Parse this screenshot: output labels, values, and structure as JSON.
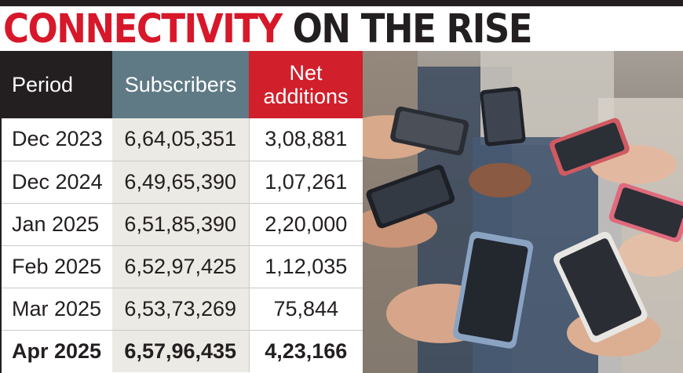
{
  "headline": {
    "part1": "CONNECTIVITY",
    "part2": "ON THE RISE"
  },
  "table": {
    "headers": {
      "period": "Period",
      "subscribers": "Subscribers",
      "net_additions_line1": "Net",
      "net_additions_line2": "additions"
    },
    "rows": [
      {
        "period": "Dec 2023",
        "subscribers": "6,64,05,351",
        "net_additions": "3,08,881"
      },
      {
        "period": "Dec 2024",
        "subscribers": "6,49,65,390",
        "net_additions": "1,07,261"
      },
      {
        "period": "Jan 2025",
        "subscribers": "6,51,85,390",
        "net_additions": "2,20,000"
      },
      {
        "period": "Feb 2025",
        "subscribers": "6,52,97,425",
        "net_additions": "1,12,035"
      },
      {
        "period": "Mar 2025",
        "subscribers": "6,53,73,269",
        "net_additions": "75,844"
      },
      {
        "period": "Apr 2025",
        "subscribers": "6,57,96,435",
        "net_additions": "4,23,166"
      }
    ]
  },
  "colors": {
    "headline_red": "#d7182a",
    "headline_dark": "#231f20",
    "period_header": "#231f20",
    "subscribers_header": "#5f7a85",
    "net_header": "#d11f2b",
    "subscribers_column": "#eceae4"
  }
}
